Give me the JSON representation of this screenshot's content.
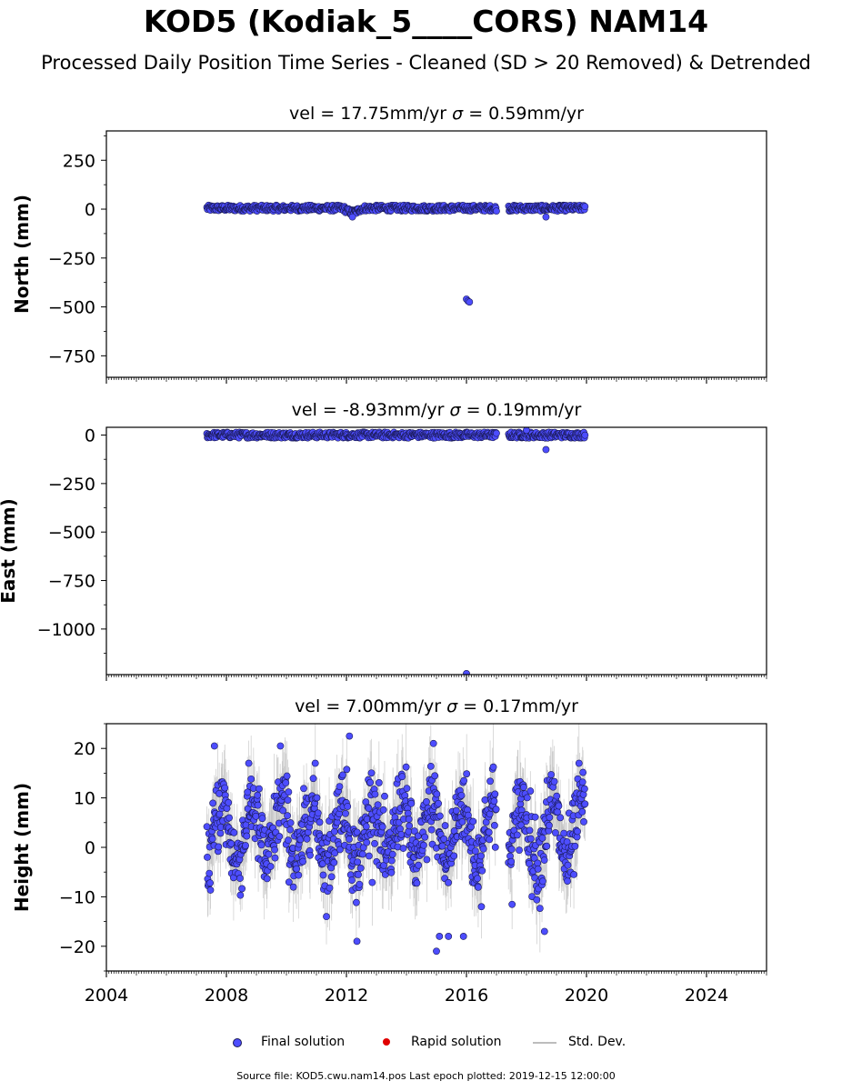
{
  "title": "KOD5 (Kodiak_5____CORS) NAM14",
  "subtitle": "Processed Daily Position Time Series - Cleaned (SD > 20 Removed) & Detrended",
  "legend": {
    "final": "Final solution",
    "rapid": "Rapid solution",
    "std": "Std. Dev."
  },
  "source_note": "Source file: KOD5.cwu.nam14.pos  Last epoch plotted: 2019-12-15 12:00:00",
  "colors": {
    "final_fill": "#4d4dff",
    "final_edge": "#1a1a55",
    "rapid": "#e00000",
    "std_dev": "#bdbdbd",
    "axis": "#000000"
  },
  "chart_data": [
    {
      "type": "scatter",
      "panel": "north",
      "title": "vel = 17.75mm/yr   σ = 0.59mm/yr",
      "title_parts": [
        "vel = 17.75mm/yr   ",
        "σ",
        " = 0.59mm/yr"
      ],
      "ylabel": "North (mm)",
      "xlim": [
        2004.0,
        2026.0
      ],
      "ylim": [
        -860,
        400
      ],
      "yticks": [
        250,
        0,
        -250,
        -500,
        -750
      ],
      "ytick_labels": [
        "250",
        "0",
        "−250",
        "−500",
        "−750"
      ],
      "x_start": 2007.35,
      "x_end": 2019.95,
      "gaps": [
        [
          2017.0,
          2017.4
        ]
      ],
      "band": [
        -10,
        20
      ],
      "notable_points": [
        {
          "x": 2012.2,
          "y": -40
        },
        {
          "x": 2016.0,
          "y": -460
        },
        {
          "x": 2016.05,
          "y": -470
        },
        {
          "x": 2016.1,
          "y": -475
        },
        {
          "x": 2018.65,
          "y": -40
        }
      ]
    },
    {
      "type": "scatter",
      "panel": "east",
      "title": "vel = -8.93mm/yr   σ = 0.19mm/yr",
      "title_parts": [
        "vel = -8.93mm/yr   ",
        "σ",
        " = 0.19mm/yr"
      ],
      "ylabel": "East (mm)",
      "xlim": [
        2004.0,
        2026.0
      ],
      "ylim": [
        -1235,
        40
      ],
      "yticks": [
        0,
        -250,
        -500,
        -750,
        -1000
      ],
      "ytick_labels": [
        "0",
        "−250",
        "−500",
        "−750",
        "−1000"
      ],
      "x_start": 2007.35,
      "x_end": 2019.95,
      "gaps": [
        [
          2017.0,
          2017.4
        ]
      ],
      "band": [
        -15,
        15
      ],
      "notable_points": [
        {
          "x": 2016.0,
          "y": -1230
        },
        {
          "x": 2018.65,
          "y": -75
        },
        {
          "x": 2018.0,
          "y": 25
        }
      ]
    },
    {
      "type": "scatter",
      "panel": "height",
      "title": "vel = 7.00mm/yr   σ = 0.17mm/yr",
      "title_parts": [
        "vel = 7.00mm/yr   ",
        "σ",
        " = 0.17mm/yr"
      ],
      "ylabel": "Height (mm)",
      "xlim": [
        2004.0,
        2026.0
      ],
      "ylim": [
        -25,
        25
      ],
      "yticks": [
        20,
        10,
        0,
        -10,
        -20
      ],
      "ytick_labels": [
        "20",
        "10",
        "0",
        "−10",
        "−20"
      ],
      "x_start": 2007.35,
      "x_end": 2019.95,
      "gaps": [
        [
          2017.0,
          2017.4
        ]
      ],
      "seasonal_amplitude": 6,
      "noise": 4,
      "notable_points": [
        {
          "x": 2012.1,
          "y": 22.5
        },
        {
          "x": 2014.9,
          "y": 21
        },
        {
          "x": 2007.6,
          "y": 20.5
        },
        {
          "x": 2009.8,
          "y": 20.5
        },
        {
          "x": 2015.0,
          "y": -21
        },
        {
          "x": 2015.1,
          "y": -18
        },
        {
          "x": 2015.4,
          "y": -18
        },
        {
          "x": 2015.9,
          "y": -18
        },
        {
          "x": 2012.35,
          "y": -19
        },
        {
          "x": 2018.6,
          "y": -17
        }
      ]
    }
  ],
  "x_axis": {
    "tick_years": [
      2004,
      2008,
      2012,
      2016,
      2020,
      2024
    ],
    "tick_labels": [
      "2004",
      "2008",
      "2012",
      "2016",
      "2020",
      "2024"
    ]
  }
}
